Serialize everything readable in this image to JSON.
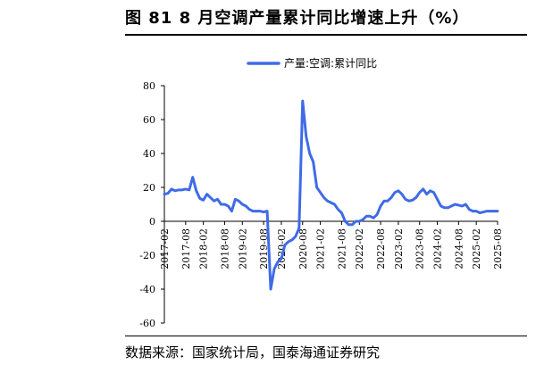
{
  "header": {
    "title": "图 81 8 月空调产量累计同比增速上升（%）"
  },
  "footer": {
    "source": "数据来源：国家统计局，国泰海通证券研究"
  },
  "colors": {
    "series": "#3f6be8",
    "axis": "#000000"
  },
  "chart_data": {
    "type": "line",
    "title": "图 81 8 月空调产量累计同比增速上升（%）",
    "xlabel": "",
    "ylabel": "",
    "ylim": [
      -60,
      80
    ],
    "yticks": [
      -60,
      -40,
      -20,
      0,
      20,
      40,
      60,
      80
    ],
    "x_tick_labels": [
      "2017-02",
      "2017-08",
      "2018-02",
      "2018-08",
      "2019-02",
      "2019-08",
      "2020-02",
      "2020-08",
      "2021-02",
      "2021-08",
      "2022-02",
      "2022-08",
      "2023-02",
      "2023-08",
      "2024-02",
      "2024-08",
      "2025-02",
      "2025-08"
    ],
    "legend": {
      "position": "top-center"
    },
    "grid": false,
    "series": [
      {
        "name": "产量:空调:累计同比",
        "x": [
          "2017-02",
          "2017-03",
          "2017-04",
          "2017-05",
          "2017-06",
          "2017-07",
          "2017-08",
          "2017-09",
          "2017-10",
          "2017-11",
          "2017-12",
          "2018-02",
          "2018-03",
          "2018-04",
          "2018-05",
          "2018-06",
          "2018-07",
          "2018-08",
          "2018-09",
          "2018-10",
          "2018-11",
          "2018-12",
          "2019-02",
          "2019-03",
          "2019-04",
          "2019-05",
          "2019-06",
          "2019-07",
          "2019-08",
          "2019-09",
          "2019-10",
          "2019-11",
          "2019-12",
          "2020-02",
          "2020-03",
          "2020-04",
          "2020-05",
          "2020-06",
          "2020-07",
          "2020-08",
          "2020-09",
          "2020-10",
          "2020-11",
          "2020-12",
          "2021-02",
          "2021-03",
          "2021-04",
          "2021-05",
          "2021-06",
          "2021-07",
          "2021-08",
          "2021-09",
          "2021-10",
          "2021-11",
          "2021-12",
          "2022-02",
          "2022-03",
          "2022-04",
          "2022-05",
          "2022-06",
          "2022-07",
          "2022-08",
          "2022-09",
          "2022-10",
          "2022-11",
          "2022-12",
          "2023-02",
          "2023-03",
          "2023-04",
          "2023-05",
          "2023-06",
          "2023-07",
          "2023-08",
          "2023-09",
          "2023-10",
          "2023-11",
          "2023-12",
          "2024-02",
          "2024-03",
          "2024-04",
          "2024-05",
          "2024-06",
          "2024-07",
          "2024-08",
          "2024-09",
          "2024-10",
          "2024-11",
          "2024-12",
          "2025-02",
          "2025-03",
          "2025-04",
          "2025-05",
          "2025-06",
          "2025-07",
          "2025-08"
        ],
        "values": [
          16,
          16.5,
          19,
          18,
          18.5,
          18.5,
          19,
          18.5,
          26,
          18,
          13.5,
          12.5,
          16,
          14,
          12,
          13,
          10,
          10,
          9,
          6,
          13,
          12,
          10,
          9,
          7,
          6,
          6,
          6,
          5.5,
          6,
          -40,
          -28,
          -24,
          -22,
          -14,
          -12,
          -11,
          -9,
          -4,
          71,
          50,
          40,
          35,
          20,
          17,
          14,
          12,
          11,
          10,
          7,
          5,
          0,
          -2,
          -2,
          0,
          0,
          1,
          3,
          3,
          2,
          4,
          9,
          12,
          12,
          14,
          17,
          18,
          16,
          13,
          12,
          12.5,
          14,
          17,
          19,
          16,
          18,
          17,
          13,
          9,
          8,
          8,
          9,
          10,
          9.5,
          9,
          10,
          7,
          6,
          6,
          5,
          5.5,
          6,
          6,
          6,
          6
        ]
      }
    ]
  }
}
